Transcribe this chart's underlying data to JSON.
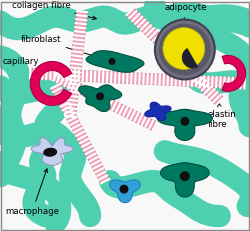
{
  "bg_color": "#ffffff",
  "labels": {
    "collagen_fibre": "collagen fibre",
    "fibroblast": "fibroblast",
    "capillary": "capillary",
    "macrophage": "macrophage",
    "adipocyte": "adipocyte",
    "elastin_fibre": "elastin\nfibre"
  },
  "colors": {
    "collagen": "#4dcfb0",
    "elastin_pink": "#f0a0b8",
    "elastin_white": "#ffffff",
    "fibroblast": "#007860",
    "capillary": "#e0005a",
    "macrophage_body": "#c8d0f0",
    "macrophage_nucleus": "#101010",
    "adipocyte_ring": "#888898",
    "adipocyte_dark": "#505060",
    "adipocyte_yellow": "#f0e000",
    "blue_cell": "#1830b0",
    "teal_cell": "#007860",
    "light_blue_cell": "#30a0d8",
    "arrow": "#000000",
    "text": "#000000",
    "border": "#888888",
    "background": "#f8f8f8"
  }
}
